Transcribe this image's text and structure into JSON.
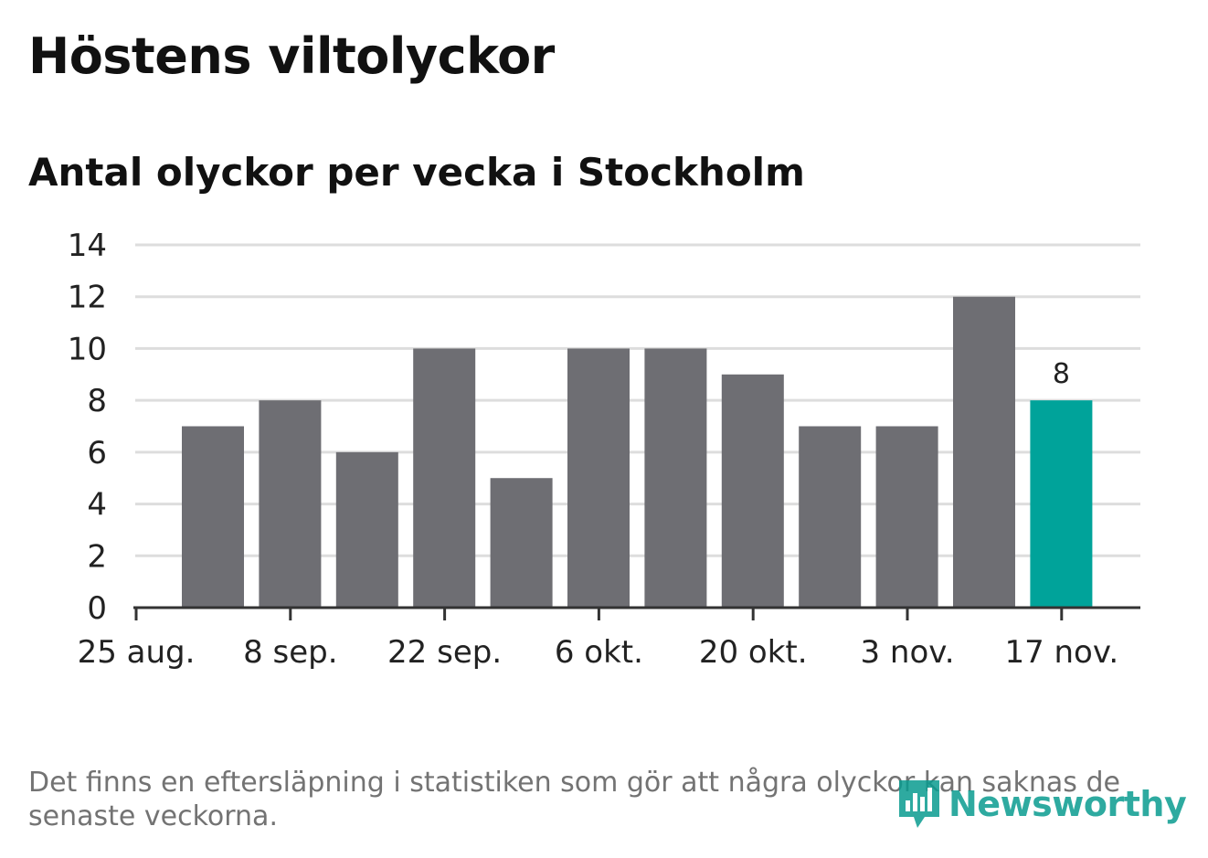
{
  "title": "Höstens viltolyckor",
  "subtitle": "Antal olyckor per vecka i Stockholm",
  "footnote": "Det finns en eftersläpning i statistiken som gör att några olyckor kan saknas de senaste veckorna.",
  "logo": {
    "text": "Newsworthy",
    "icon": "newsworthy-logo-icon",
    "color": "#0a9c90"
  },
  "colors": {
    "bar": "#6e6e73",
    "highlight": "#00a39a",
    "grid": "#dddddd",
    "axis": "#333333"
  },
  "chart_data": {
    "type": "bar",
    "title": "Höstens viltolyckor",
    "subtitle": "Antal olyckor per vecka i Stockholm",
    "xlabel": "",
    "ylabel": "",
    "ylim": [
      0,
      14
    ],
    "yticks": [
      "0",
      "2",
      "4",
      "6",
      "8",
      "10",
      "12",
      "14"
    ],
    "xticks": [
      "25 aug.",
      "8 sep.",
      "22 sep.",
      "6 okt.",
      "20 okt.",
      "3 nov.",
      "17 nov."
    ],
    "grid": true,
    "values": [
      7,
      8,
      6,
      10,
      5,
      10,
      10,
      9,
      7,
      7,
      12,
      8
    ],
    "highlight_index": 11,
    "highlight_label": "8"
  }
}
